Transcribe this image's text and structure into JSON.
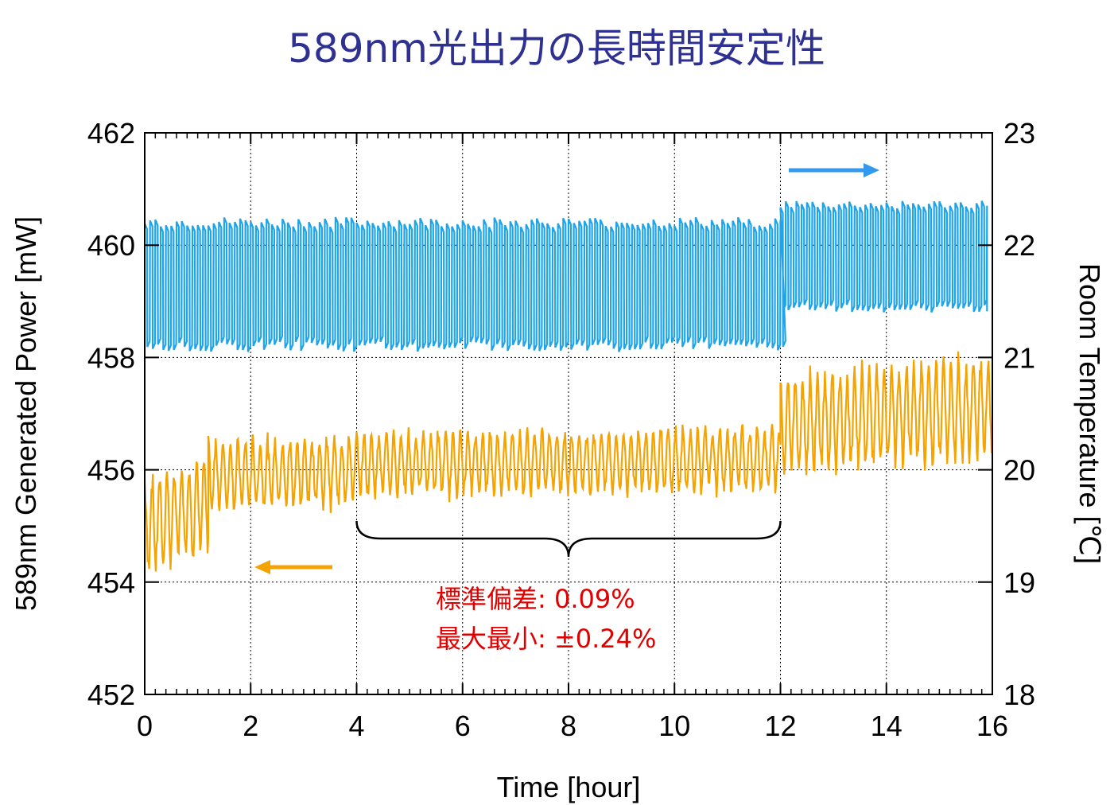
{
  "chart_data": {
    "type": "line",
    "title": "589nm光出力の長時間安定性",
    "xlabel": "Time [hour]",
    "ylabel_left": "589nm Generated Power [mW]",
    "ylabel_right": "Room Temperature [℃]",
    "xlim": [
      0,
      16
    ],
    "ylim_left": [
      452,
      462
    ],
    "ylim_right": [
      18,
      23
    ],
    "x_ticks": [
      "0",
      "2",
      "4",
      "6",
      "8",
      "10",
      "12",
      "14",
      "16"
    ],
    "y_left_ticks": [
      "452",
      "454",
      "456",
      "458",
      "460",
      "462"
    ],
    "y_right_ticks": [
      "18",
      "19",
      "20",
      "21",
      "22",
      "23"
    ],
    "grid": true,
    "colors": {
      "power": "#f5a300",
      "temperature": "#1ea5e9",
      "title": "#2e3192",
      "annotation": "#e00000",
      "arrow_temp": "#3399ee",
      "arrow_power": "#f5a300"
    },
    "series": [
      {
        "axis": "left",
        "segments": [
          {
            "x_start": 0,
            "x_end": 1.2,
            "period_hour": 0.14,
            "center_start": 455.0,
            "center_end": 455.4,
            "amplitude": 0.9
          },
          {
            "x_start": 1.2,
            "x_end": 4.0,
            "period_hour": 0.14,
            "center_start": 455.9,
            "center_end": 456.0,
            "amplitude": 0.65
          },
          {
            "x_start": 4.0,
            "x_end": 12.0,
            "period_hour": 0.14,
            "center_start": 456.1,
            "center_end": 456.2,
            "amplitude": 0.6
          },
          {
            "x_start": 12.0,
            "x_end": 16.0,
            "period_hour": 0.14,
            "center_start": 456.8,
            "center_end": 457.1,
            "amplitude": 0.95
          }
        ]
      },
      {
        "axis": "right",
        "segments": [
          {
            "x_start": 0,
            "x_end": 12.0,
            "period_hour": 0.1,
            "center": 21.65,
            "amplitude": 0.6
          },
          {
            "x_start": 12.0,
            "x_end": 16.0,
            "period_hour": 0.1,
            "center": 21.9,
            "amplitude": 0.5
          }
        ]
      }
    ],
    "annotations": {
      "bracket_range": [
        4,
        12
      ],
      "std_label": "標準偏差: 0.09%",
      "maxmin_label": "最大最小: ±0.24%"
    }
  }
}
